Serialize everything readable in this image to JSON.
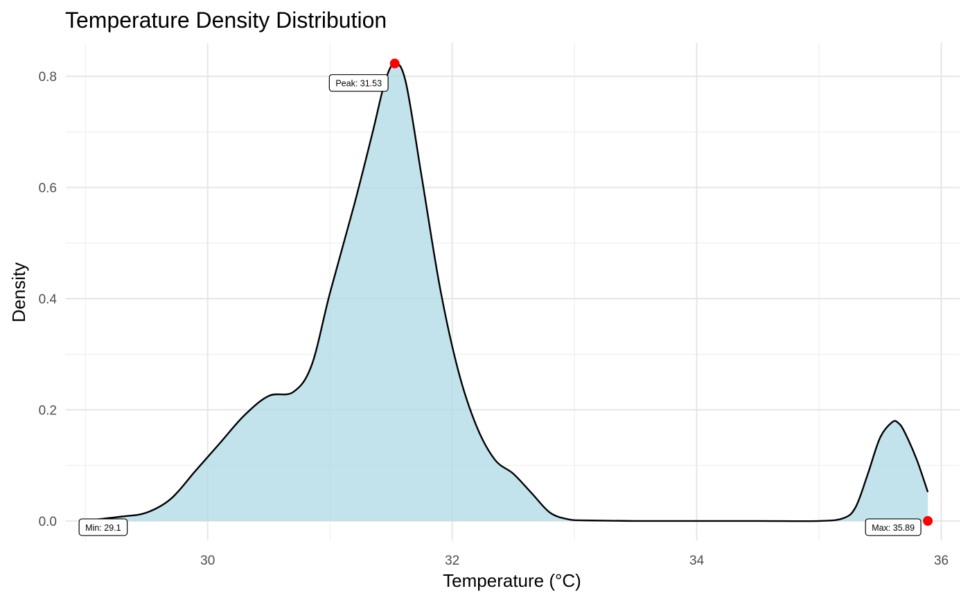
{
  "chart_data": {
    "type": "area",
    "title": "Temperature Density Distribution",
    "xlabel": "Temperature (°C)",
    "ylabel": "Density",
    "xlim": [
      28.84,
      36.15
    ],
    "ylim": [
      -0.035,
      0.86
    ],
    "x_ticks": [
      30,
      32,
      34,
      36
    ],
    "x_tick_labels": [
      "30",
      "32",
      "34",
      "36"
    ],
    "y_ticks": [
      0.0,
      0.2,
      0.4,
      0.6,
      0.8
    ],
    "y_tick_labels": [
      "0.0",
      "0.2",
      "0.4",
      "0.6",
      "0.8"
    ],
    "grid": true,
    "fill_color": "#add8e6",
    "line_color": "#000000",
    "marker_color": "#ff0000",
    "series": [
      {
        "x": [
          29.1,
          29.3,
          29.5,
          29.7,
          29.9,
          30.1,
          30.3,
          30.5,
          30.7,
          30.85,
          31.0,
          31.2,
          31.35,
          31.45,
          31.53,
          31.62,
          31.75,
          31.9,
          32.05,
          32.2,
          32.35,
          32.5,
          32.65,
          32.8,
          32.95,
          33.1,
          33.5,
          34.0,
          34.5,
          35.0,
          35.2,
          35.3,
          35.4,
          35.5,
          35.6,
          35.65,
          35.7,
          35.8,
          35.89
        ],
        "y": [
          0.003,
          0.008,
          0.015,
          0.04,
          0.09,
          0.14,
          0.19,
          0.225,
          0.232,
          0.28,
          0.41,
          0.57,
          0.7,
          0.79,
          0.823,
          0.79,
          0.62,
          0.42,
          0.27,
          0.17,
          0.11,
          0.085,
          0.05,
          0.015,
          0.003,
          0.001,
          0.0,
          0.0,
          0.0,
          0.0,
          0.005,
          0.025,
          0.085,
          0.15,
          0.178,
          0.176,
          0.16,
          0.11,
          0.052
        ]
      }
    ],
    "annotations": [
      {
        "label": "Peak: 31.53",
        "x": 31.53,
        "y": 0.823
      },
      {
        "label": "Min: 29.1",
        "x": 29.1,
        "y": 0.0
      },
      {
        "label": "Max: 35.89",
        "x": 35.89,
        "y": 0.0
      }
    ]
  }
}
